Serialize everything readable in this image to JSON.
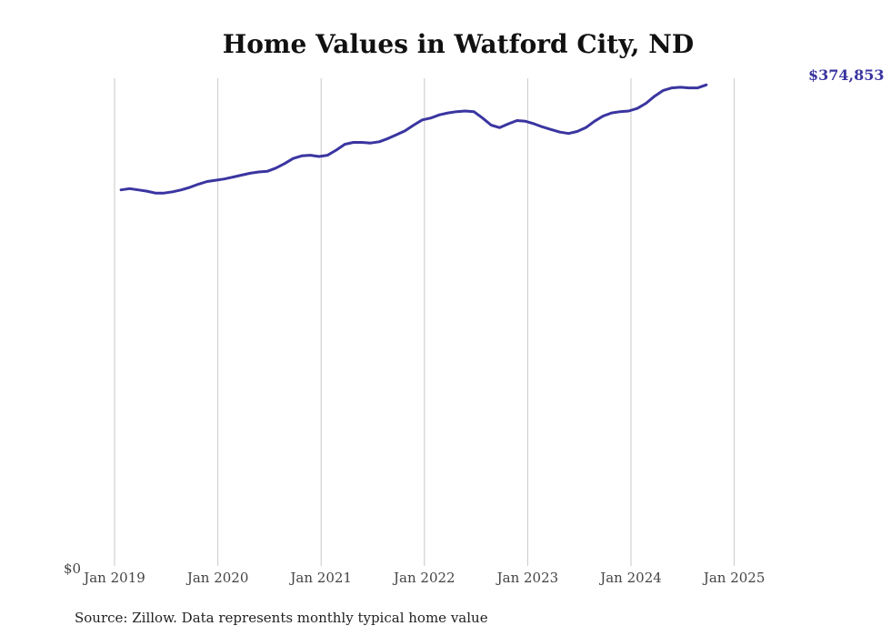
{
  "chart_data": {
    "type": "line",
    "title": "Home Values in Watford City, ND",
    "xlabel": "",
    "ylabel": "",
    "y_tick_label": "$0",
    "ylim": [
      0,
      380000
    ],
    "x_ticks": [
      "Jan 2019",
      "Jan 2020",
      "Jan 2021",
      "Jan 2022",
      "Jan 2023",
      "Jan 2024",
      "Jan 2025"
    ],
    "end_label": "$374,853",
    "source": "Source: Zillow. Data represents monthly typical home value",
    "series": [
      {
        "name": "Home value",
        "color": "#3a35a0",
        "start": "Jan 2019",
        "values": [
          293000,
          294000,
          293000,
          292000,
          290500,
          290500,
          291500,
          293000,
          295000,
          297500,
          299500,
          300500,
          301500,
          303000,
          304500,
          306000,
          307000,
          307500,
          310000,
          313500,
          317500,
          319500,
          320000,
          319000,
          320000,
          324000,
          328500,
          330000,
          330000,
          329500,
          330500,
          333000,
          336000,
          339000,
          343500,
          347500,
          349000,
          351500,
          353000,
          354000,
          354500,
          354000,
          349000,
          343500,
          341500,
          344500,
          347000,
          346500,
          344500,
          342000,
          340000,
          338000,
          337000,
          338500,
          341500,
          346500,
          350500,
          353000,
          354000,
          354500,
          356500,
          360500,
          366000,
          370500,
          372500,
          373000,
          372500,
          372500,
          374853
        ]
      }
    ]
  }
}
